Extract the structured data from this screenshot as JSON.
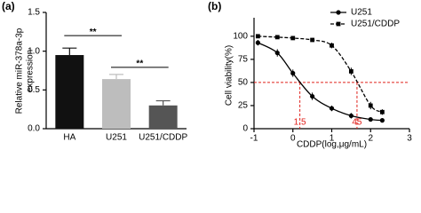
{
  "chart_data": [
    {
      "type": "bar",
      "panel_label": "(a)",
      "y_label": [
        "Relative miR-378a-3p",
        "expression"
      ],
      "categories": [
        "HA",
        "U251",
        "U251/CDDP"
      ],
      "values": [
        0.95,
        0.64,
        0.3
      ],
      "errors": [
        0.09,
        0.06,
        0.06
      ],
      "colors": [
        "#111111",
        "#bdbdbd",
        "#555555"
      ],
      "ylim": [
        0,
        1.5
      ],
      "yticks": [
        {
          "value": 0,
          "label": "0.0"
        },
        {
          "value": 0.5,
          "label": "0.5"
        },
        {
          "value": 1,
          "label": "1.0"
        },
        {
          "value": 1.5,
          "label": "1.5"
        }
      ],
      "significance": [
        {
          "label": "**",
          "between": [
            "HA",
            "U251"
          ]
        },
        {
          "label": "**",
          "between": [
            "U251",
            "U251/CDDP"
          ]
        }
      ]
    },
    {
      "type": "dose-response",
      "panel_label": "(b)",
      "x_label": "CDDP(log,μg/mL)",
      "y_label": "Cell viability(%)",
      "x": [
        -0.9,
        -0.4,
        0,
        0.5,
        1,
        1.5,
        2,
        2.3
      ],
      "series": [
        {
          "name": "U251",
          "color": "#000000",
          "marker": "circle",
          "dash": false,
          "values": [
            93,
            82,
            60,
            35,
            22,
            14,
            10,
            9
          ],
          "errors": [
            3,
            4,
            4,
            4,
            3,
            3,
            2,
            2
          ]
        },
        {
          "name": "U251/CDDP",
          "color": "#000000",
          "marker": "square",
          "dash": true,
          "values": [
            100,
            99,
            98,
            96,
            90,
            62,
            25,
            18
          ],
          "errors": [
            2,
            2,
            2,
            2,
            3,
            4,
            4,
            3
          ]
        }
      ],
      "xlim": [
        -1,
        3
      ],
      "ylim": [
        0,
        120
      ],
      "xticks": [
        -1,
        0,
        1,
        2,
        3
      ],
      "yticks": [
        0,
        25,
        50,
        75,
        100
      ],
      "reference_y": 50,
      "reference_color": "#e0201b",
      "reference_x": [
        {
          "value": 0.18,
          "label": "1.5"
        },
        {
          "value": 1.65,
          "label": "45"
        }
      ],
      "legend": "top-right"
    }
  ]
}
